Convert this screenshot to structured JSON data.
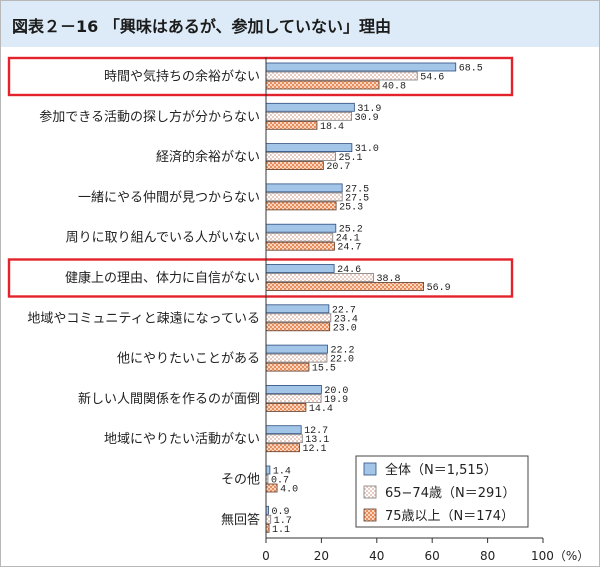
{
  "title": "図表２－16 「興味はあるが、参加していない」理由",
  "colors": {
    "header_bg": "#dcebf7",
    "highlight_box": "#e3232c",
    "series_fill": [
      "#a3c5e8",
      "#e9cdc5",
      "#e98d5d"
    ],
    "series_pattern_bg": [
      "#a3c5e8",
      "#ffffff",
      "#f8d6bf"
    ],
    "series_stroke": [
      "#2c4d7e",
      "#7a7a7a",
      "#5e3a28"
    ]
  },
  "chart_data": {
    "type": "bar",
    "orientation": "horizontal",
    "categories": [
      "時間や気持ちの余裕がない",
      "参加できる活動の探し方が分からない",
      "経済的余裕がない",
      "一緒にやる仲間が見つからない",
      "周りに取り組んでいる人がいない",
      "健康上の理由、体力に自信がない",
      "地域やコミュニティと疎遠になっている",
      "他にやりたいことがある",
      "新しい人間関係を作るのが面倒",
      "地域にやりたい活動がない",
      "その他",
      "無回答"
    ],
    "series": [
      {
        "name": "全体（N＝1,515）",
        "values": [
          68.5,
          31.9,
          31.0,
          27.5,
          25.2,
          24.6,
          22.7,
          22.2,
          20.0,
          12.7,
          1.4,
          0.9
        ]
      },
      {
        "name": "65−74歳（N＝291）",
        "values": [
          54.6,
          30.9,
          25.1,
          27.5,
          24.1,
          38.8,
          23.4,
          22.0,
          19.9,
          13.1,
          0.7,
          1.7
        ]
      },
      {
        "name": "75歳以上（N＝174）",
        "values": [
          40.8,
          18.4,
          20.7,
          25.3,
          24.7,
          56.9,
          23.0,
          15.5,
          14.4,
          12.1,
          4.0,
          1.1
        ]
      }
    ],
    "xlim": [
      0,
      100
    ],
    "x_ticks": [
      0,
      20,
      40,
      60,
      80,
      100
    ],
    "x_tick_labels": [
      "0",
      "20",
      "40",
      "60",
      "80",
      "100（%）"
    ],
    "data_labels": true,
    "grid": false,
    "legend_position": "bottom-right",
    "highlight_indices": [
      0,
      5
    ]
  }
}
